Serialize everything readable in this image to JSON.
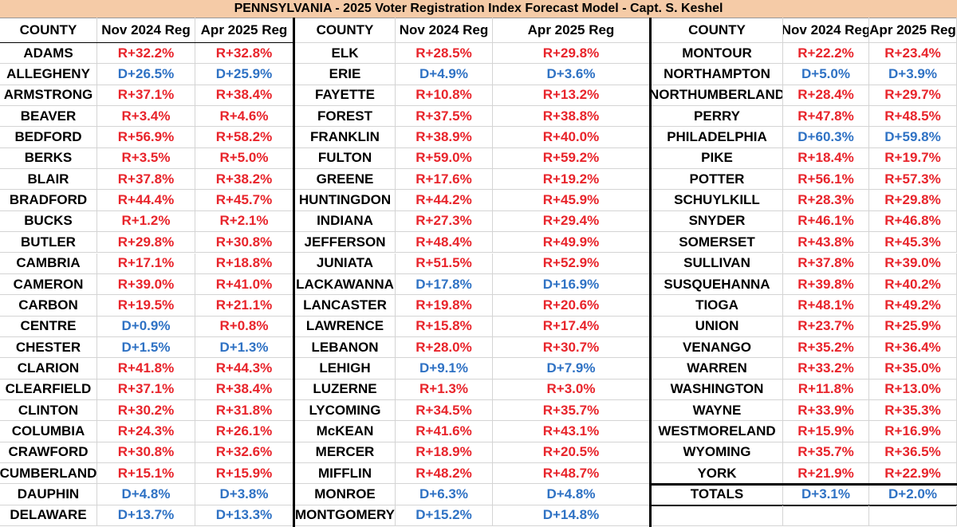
{
  "title": "PENNSYLVANIA -  2025 Voter Registration Index Forecast Model - Capt. S. Keshel",
  "tables": [
    {
      "header": [
        "COUNTY",
        "Nov 2024 Reg",
        "Apr 2025 Reg"
      ],
      "rows": [
        [
          "ADAMS",
          "R+32.2%",
          "R+32.8%"
        ],
        [
          "ALLEGHENY",
          "D+26.5%",
          "D+25.9%"
        ],
        [
          "ARMSTRONG",
          "R+37.1%",
          "R+38.4%"
        ],
        [
          "BEAVER",
          "R+3.4%",
          "R+4.6%"
        ],
        [
          "BEDFORD",
          "R+56.9%",
          "R+58.2%"
        ],
        [
          "BERKS",
          "R+3.5%",
          "R+5.0%"
        ],
        [
          "BLAIR",
          "R+37.8%",
          "R+38.2%"
        ],
        [
          "BRADFORD",
          "R+44.4%",
          "R+45.7%"
        ],
        [
          "BUCKS",
          "R+1.2%",
          "R+2.1%"
        ],
        [
          "BUTLER",
          "R+29.8%",
          "R+30.8%"
        ],
        [
          "CAMBRIA",
          "R+17.1%",
          "R+18.8%"
        ],
        [
          "CAMERON",
          "R+39.0%",
          "R+41.0%"
        ],
        [
          "CARBON",
          "R+19.5%",
          "R+21.1%"
        ],
        [
          "CENTRE",
          "D+0.9%",
          "R+0.8%"
        ],
        [
          "CHESTER",
          "D+1.5%",
          "D+1.3%"
        ],
        [
          "CLARION",
          "R+41.8%",
          "R+44.3%"
        ],
        [
          "CLEARFIELD",
          "R+37.1%",
          "R+38.4%"
        ],
        [
          "CLINTON",
          "R+30.2%",
          "R+31.8%"
        ],
        [
          "COLUMBIA",
          "R+24.3%",
          "R+26.1%"
        ],
        [
          "CRAWFORD",
          "R+30.8%",
          "R+32.6%"
        ],
        [
          "CUMBERLAND",
          "R+15.1%",
          "R+15.9%"
        ],
        [
          "DAUPHIN",
          "D+4.8%",
          "D+3.8%"
        ],
        [
          "DELAWARE",
          "D+13.7%",
          "D+13.3%"
        ]
      ]
    },
    {
      "header": [
        "COUNTY",
        "Nov 2024 Reg",
        "Apr 2025 Reg"
      ],
      "rows": [
        [
          "ELK",
          "R+28.5%",
          "R+29.8%"
        ],
        [
          "ERIE",
          "D+4.9%",
          "D+3.6%"
        ],
        [
          "FAYETTE",
          "R+10.8%",
          "R+13.2%"
        ],
        [
          "FOREST",
          "R+37.5%",
          "R+38.8%"
        ],
        [
          "FRANKLIN",
          "R+38.9%",
          "R+40.0%"
        ],
        [
          "FULTON",
          "R+59.0%",
          "R+59.2%"
        ],
        [
          "GREENE",
          "R+17.6%",
          "R+19.2%"
        ],
        [
          "HUNTINGDON",
          "R+44.2%",
          "R+45.9%"
        ],
        [
          "INDIANA",
          "R+27.3%",
          "R+29.4%"
        ],
        [
          "JEFFERSON",
          "R+48.4%",
          "R+49.9%"
        ],
        [
          "JUNIATA",
          "R+51.5%",
          "R+52.9%"
        ],
        [
          "LACKAWANNA",
          "D+17.8%",
          "D+16.9%"
        ],
        [
          "LANCASTER",
          "R+19.8%",
          "R+20.6%"
        ],
        [
          "LAWRENCE",
          "R+15.8%",
          "R+17.4%"
        ],
        [
          "LEBANON",
          "R+28.0%",
          "R+30.7%"
        ],
        [
          "LEHIGH",
          "D+9.1%",
          "D+7.9%"
        ],
        [
          "LUZERNE",
          "R+1.3%",
          "R+3.0%"
        ],
        [
          "LYCOMING",
          "R+34.5%",
          "R+35.7%"
        ],
        [
          "McKEAN",
          "R+41.6%",
          "R+43.1%"
        ],
        [
          "MERCER",
          "R+18.9%",
          "R+20.5%"
        ],
        [
          "MIFFLIN",
          "R+48.2%",
          "R+48.7%"
        ],
        [
          "MONROE",
          "D+6.3%",
          "D+4.8%"
        ],
        [
          "MONTGOMERY",
          "D+15.2%",
          "D+14.8%"
        ]
      ]
    },
    {
      "header": [
        "COUNTY",
        "Nov 2024 Reg",
        "Apr 2025 Reg"
      ],
      "rows": [
        [
          "MONTOUR",
          "R+22.2%",
          "R+23.4%"
        ],
        [
          "NORTHAMPTON",
          "D+5.0%",
          "D+3.9%"
        ],
        [
          "NORTHUMBERLAND",
          "R+28.4%",
          "R+29.7%"
        ],
        [
          "PERRY",
          "R+47.8%",
          "R+48.5%"
        ],
        [
          "PHILADELPHIA",
          "D+60.3%",
          "D+59.8%"
        ],
        [
          "PIKE",
          "R+18.4%",
          "R+19.7%"
        ],
        [
          "POTTER",
          "R+56.1%",
          "R+57.3%"
        ],
        [
          "SCHUYLKILL",
          "R+28.3%",
          "R+29.8%"
        ],
        [
          "SNYDER",
          "R+46.1%",
          "R+46.8%"
        ],
        [
          "SOMERSET",
          "R+43.8%",
          "R+45.3%"
        ],
        [
          "SULLIVAN",
          "R+37.8%",
          "R+39.0%"
        ],
        [
          "SUSQUEHANNA",
          "R+39.8%",
          "R+40.2%"
        ],
        [
          "TIOGA",
          "R+48.1%",
          "R+49.2%"
        ],
        [
          "UNION",
          "R+23.7%",
          "R+25.9%"
        ],
        [
          "VENANGO",
          "R+35.2%",
          "R+36.4%"
        ],
        [
          "WARREN",
          "R+33.2%",
          "R+35.0%"
        ],
        [
          "WASHINGTON",
          "R+11.8%",
          "R+13.0%"
        ],
        [
          "WAYNE",
          "R+33.9%",
          "R+35.3%"
        ],
        [
          "WESTMORELAND",
          "R+15.9%",
          "R+16.9%"
        ],
        [
          "WYOMING",
          "R+35.7%",
          "R+36.5%"
        ],
        [
          "YORK",
          "R+21.9%",
          "R+22.9%"
        ]
      ],
      "totals": [
        "TOTALS",
        "D+3.1%",
        "D+2.0%"
      ]
    }
  ]
}
